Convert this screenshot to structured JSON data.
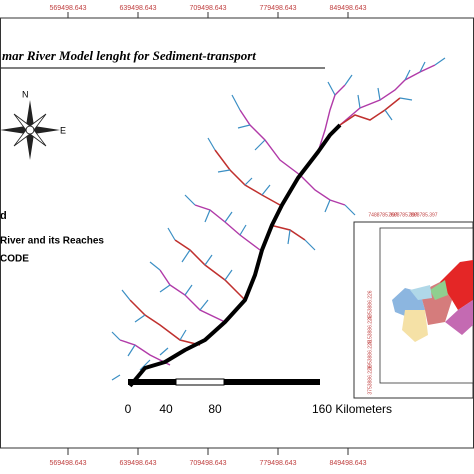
{
  "map": {
    "title": "mar River Model lenght for Sediment-transport",
    "top_ticks": [
      "569498.643",
      "639498.643",
      "709498.643",
      "779498.643",
      "849498.643"
    ],
    "bottom_ticks": [
      "569498.643",
      "639498.643",
      "709498.643",
      "779498.643",
      "849498.643"
    ],
    "compass": {
      "north": "N",
      "east": "E"
    },
    "legend": {
      "heading": "d",
      "item": "River and its Reaches",
      "code": "CODE"
    },
    "scale_bar": [
      "0",
      "40",
      "80",
      "160 Kilometers"
    ],
    "inset": {
      "top_ticks": [
        "7488785.397",
        "7688785.397",
        "7888785.397"
      ],
      "left_ticks": [
        "4353886.226",
        "4153886.226",
        "3953886.226",
        "3753886.226"
      ]
    }
  }
}
